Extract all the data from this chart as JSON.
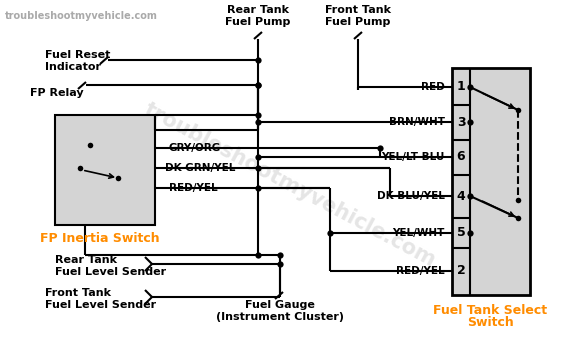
{
  "bg_color": "#ffffff",
  "line_color": "#000000",
  "orange_color": "#FF8C00",
  "box_fill": "#d4d4d4",
  "watermark_color": "#c8c8c8",
  "labels": {
    "website": "troubleshootmyvehicle.com",
    "fuel_reset_line1": "Fuel Reset",
    "fuel_reset_line2": "Indicator",
    "fp_relay": "FP Relay",
    "fp_inertia": "FP Inertia Switch",
    "rear_tank_pump_line1": "Rear Tank",
    "rear_tank_pump_line2": "Fuel Pump",
    "front_tank_pump_line1": "Front Tank",
    "front_tank_pump_line2": "Fuel Pump",
    "rear_sender_line1": "Rear Tank",
    "rear_sender_line2": "Fuel Level Sender",
    "front_sender_line1": "Front Tank",
    "front_sender_line2": "Fuel Level Sender",
    "fuel_gauge_line1": "Fuel Gauge",
    "fuel_gauge_line2": "(Instrument Cluster)",
    "fuel_tank_select_line1": "Fuel Tank Select",
    "fuel_tank_select_line2": "Switch",
    "gry_org": "GRY/ORG",
    "dk_grn_yel": "DK GRN/YEL",
    "red_yel": "RED/YEL",
    "red": "RED",
    "brn_wht": "BRN/WHT",
    "yel_lt_blu": "YEL/LT BLU",
    "dk_blu_yel": "DK BLU/YEL",
    "yel_wht": "YEL/WHT",
    "red_yel2": "RED/YEL",
    "pin1": "1",
    "pin3": "3",
    "pin6": "6",
    "pin4": "4",
    "pin5": "5",
    "pin2": "2"
  }
}
